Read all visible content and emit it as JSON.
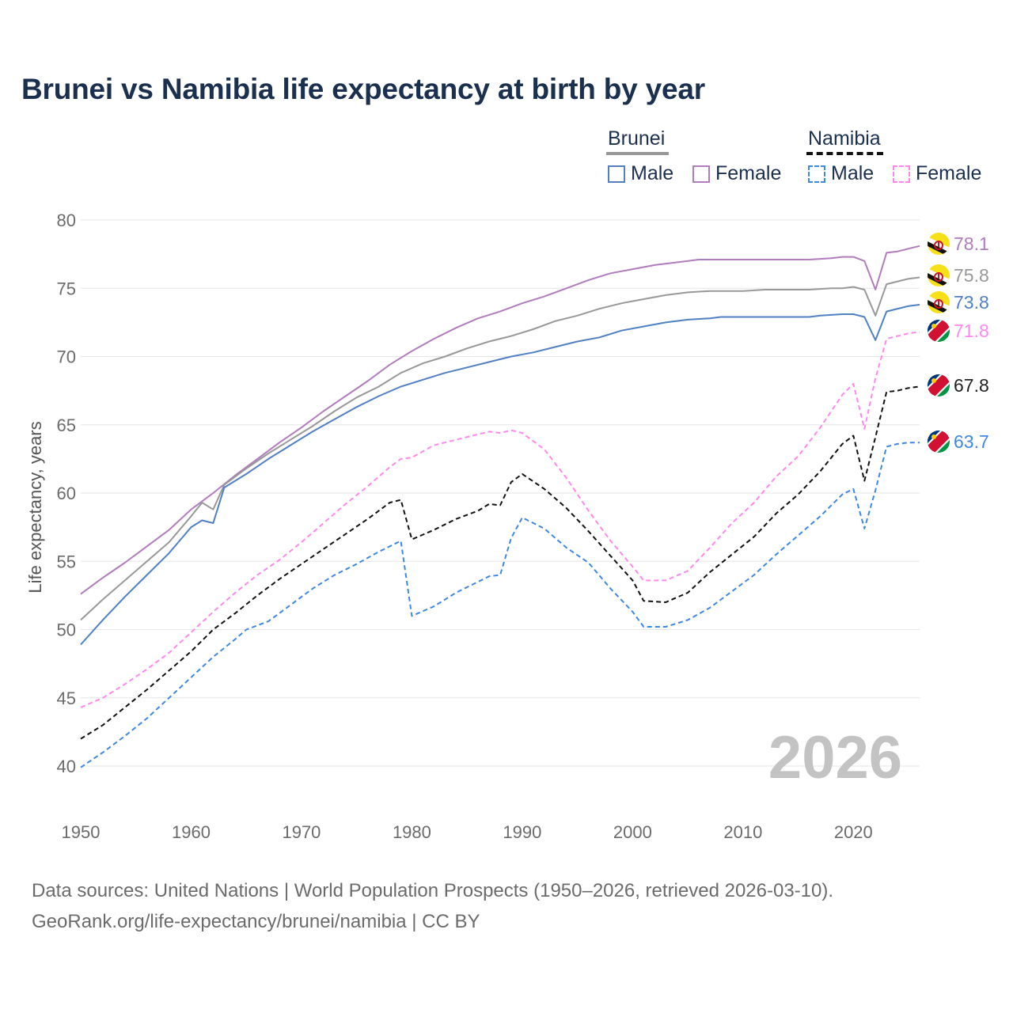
{
  "chart_data": {
    "type": "line",
    "title": "Brunei vs Namibia life expectancy at birth by year",
    "ylabel": "Life expectancy, years",
    "xlabel": "",
    "xlim": [
      1950,
      2026
    ],
    "ylim": [
      38,
      81
    ],
    "x_ticks": [
      "1950",
      "1960",
      "1970",
      "1980",
      "1990",
      "2000",
      "2010",
      "2020"
    ],
    "y_ticks": [
      "40",
      "45",
      "50",
      "55",
      "60",
      "65",
      "70",
      "75",
      "80"
    ],
    "year_watermark": "2026",
    "legend": {
      "brunei_label": "Brunei",
      "namibia_label": "Namibia",
      "male_label": "Male",
      "female_label": "Female"
    },
    "series": [
      {
        "name": "Brunei Female",
        "color": "#b07cbd",
        "dashed": false,
        "end_label": "78.1",
        "flag": "brunei",
        "points": [
          [
            1950,
            52.6
          ],
          [
            1952,
            53.8
          ],
          [
            1954,
            54.9
          ],
          [
            1956,
            56.1
          ],
          [
            1958,
            57.3
          ],
          [
            1960,
            58.8
          ],
          [
            1962,
            60.0
          ],
          [
            1964,
            61.3
          ],
          [
            1966,
            62.5
          ],
          [
            1968,
            63.7
          ],
          [
            1970,
            64.8
          ],
          [
            1972,
            66.0
          ],
          [
            1974,
            67.1
          ],
          [
            1976,
            68.2
          ],
          [
            1978,
            69.4
          ],
          [
            1980,
            70.4
          ],
          [
            1982,
            71.3
          ],
          [
            1984,
            72.1
          ],
          [
            1986,
            72.8
          ],
          [
            1988,
            73.3
          ],
          [
            1990,
            73.9
          ],
          [
            1992,
            74.4
          ],
          [
            1994,
            75.0
          ],
          [
            1996,
            75.6
          ],
          [
            1998,
            76.1
          ],
          [
            2000,
            76.4
          ],
          [
            2002,
            76.7
          ],
          [
            2004,
            76.9
          ],
          [
            2006,
            77.1
          ],
          [
            2008,
            77.1
          ],
          [
            2010,
            77.1
          ],
          [
            2012,
            77.1
          ],
          [
            2014,
            77.1
          ],
          [
            2016,
            77.1
          ],
          [
            2018,
            77.2
          ],
          [
            2019,
            77.3
          ],
          [
            2020,
            77.3
          ],
          [
            2021,
            77.0
          ],
          [
            2022,
            74.9
          ],
          [
            2023,
            77.6
          ],
          [
            2024,
            77.7
          ],
          [
            2025,
            77.9
          ],
          [
            2026,
            78.1
          ]
        ]
      },
      {
        "name": "Brunei (total)",
        "color": "#989898",
        "dashed": false,
        "end_label": "75.8",
        "flag": "brunei",
        "points": [
          [
            1950,
            50.7
          ],
          [
            1952,
            52.2
          ],
          [
            1954,
            53.6
          ],
          [
            1956,
            55.0
          ],
          [
            1958,
            56.4
          ],
          [
            1960,
            58.3
          ],
          [
            1961,
            59.3
          ],
          [
            1962,
            58.8
          ],
          [
            1963,
            60.6
          ],
          [
            1965,
            61.8
          ],
          [
            1967,
            62.9
          ],
          [
            1969,
            63.9
          ],
          [
            1971,
            64.9
          ],
          [
            1973,
            66.0
          ],
          [
            1975,
            67.0
          ],
          [
            1977,
            67.8
          ],
          [
            1979,
            68.8
          ],
          [
            1981,
            69.5
          ],
          [
            1983,
            70.0
          ],
          [
            1985,
            70.6
          ],
          [
            1987,
            71.1
          ],
          [
            1989,
            71.5
          ],
          [
            1991,
            72.0
          ],
          [
            1993,
            72.6
          ],
          [
            1995,
            73.0
          ],
          [
            1997,
            73.5
          ],
          [
            1999,
            73.9
          ],
          [
            2001,
            74.2
          ],
          [
            2003,
            74.5
          ],
          [
            2005,
            74.7
          ],
          [
            2007,
            74.8
          ],
          [
            2010,
            74.8
          ],
          [
            2012,
            74.9
          ],
          [
            2014,
            74.9
          ],
          [
            2016,
            74.9
          ],
          [
            2018,
            75.0
          ],
          [
            2019,
            75.0
          ],
          [
            2020,
            75.1
          ],
          [
            2021,
            74.9
          ],
          [
            2022,
            73.0
          ],
          [
            2023,
            75.3
          ],
          [
            2024,
            75.5
          ],
          [
            2025,
            75.7
          ],
          [
            2026,
            75.8
          ]
        ]
      },
      {
        "name": "Brunei Male",
        "color": "#4f80c4",
        "dashed": false,
        "end_label": "73.8",
        "flag": "brunei",
        "points": [
          [
            1950,
            48.9
          ],
          [
            1952,
            50.7
          ],
          [
            1954,
            52.4
          ],
          [
            1956,
            54.0
          ],
          [
            1958,
            55.6
          ],
          [
            1960,
            57.5
          ],
          [
            1961,
            58.0
          ],
          [
            1962,
            57.8
          ],
          [
            1963,
            60.4
          ],
          [
            1965,
            61.4
          ],
          [
            1967,
            62.5
          ],
          [
            1969,
            63.5
          ],
          [
            1971,
            64.5
          ],
          [
            1973,
            65.4
          ],
          [
            1975,
            66.3
          ],
          [
            1977,
            67.1
          ],
          [
            1979,
            67.8
          ],
          [
            1981,
            68.3
          ],
          [
            1983,
            68.8
          ],
          [
            1985,
            69.2
          ],
          [
            1987,
            69.6
          ],
          [
            1989,
            70.0
          ],
          [
            1991,
            70.3
          ],
          [
            1993,
            70.7
          ],
          [
            1995,
            71.1
          ],
          [
            1997,
            71.4
          ],
          [
            1999,
            71.9
          ],
          [
            2001,
            72.2
          ],
          [
            2003,
            72.5
          ],
          [
            2005,
            72.7
          ],
          [
            2007,
            72.8
          ],
          [
            2008,
            72.9
          ],
          [
            2010,
            72.9
          ],
          [
            2012,
            72.9
          ],
          [
            2014,
            72.9
          ],
          [
            2016,
            72.9
          ],
          [
            2017,
            73.0
          ],
          [
            2019,
            73.1
          ],
          [
            2020,
            73.1
          ],
          [
            2021,
            72.9
          ],
          [
            2022,
            71.2
          ],
          [
            2023,
            73.3
          ],
          [
            2024,
            73.5
          ],
          [
            2025,
            73.7
          ],
          [
            2026,
            73.8
          ]
        ]
      },
      {
        "name": "Namibia Female",
        "color": "#ff88ee",
        "dashed": true,
        "end_label": "71.8",
        "flag": "namibia",
        "points": [
          [
            1950,
            44.3
          ],
          [
            1952,
            45.0
          ],
          [
            1954,
            46.0
          ],
          [
            1956,
            47.1
          ],
          [
            1958,
            48.3
          ],
          [
            1960,
            49.8
          ],
          [
            1962,
            51.3
          ],
          [
            1964,
            52.7
          ],
          [
            1966,
            54.0
          ],
          [
            1968,
            55.1
          ],
          [
            1970,
            56.4
          ],
          [
            1972,
            57.8
          ],
          [
            1974,
            59.2
          ],
          [
            1976,
            60.5
          ],
          [
            1978,
            61.9
          ],
          [
            1979,
            62.5
          ],
          [
            1980,
            62.6
          ],
          [
            1982,
            63.5
          ],
          [
            1984,
            63.9
          ],
          [
            1986,
            64.3
          ],
          [
            1987,
            64.5
          ],
          [
            1988,
            64.4
          ],
          [
            1989,
            64.6
          ],
          [
            1990,
            64.4
          ],
          [
            1992,
            63.2
          ],
          [
            1994,
            61.1
          ],
          [
            1996,
            58.7
          ],
          [
            1998,
            56.5
          ],
          [
            2000,
            54.6
          ],
          [
            2001,
            53.6
          ],
          [
            2003,
            53.6
          ],
          [
            2005,
            54.3
          ],
          [
            2007,
            56.0
          ],
          [
            2009,
            57.8
          ],
          [
            2011,
            59.3
          ],
          [
            2013,
            61.2
          ],
          [
            2015,
            62.7
          ],
          [
            2017,
            64.8
          ],
          [
            2019,
            67.2
          ],
          [
            2020,
            68.0
          ],
          [
            2021,
            64.7
          ],
          [
            2022,
            68.4
          ],
          [
            2023,
            71.3
          ],
          [
            2024,
            71.5
          ],
          [
            2025,
            71.7
          ],
          [
            2026,
            71.8
          ]
        ]
      },
      {
        "name": "Namibia (total)",
        "color": "#111111",
        "dashed": true,
        "end_label": "67.8",
        "flag": "namibia",
        "points": [
          [
            1950,
            42.0
          ],
          [
            1952,
            43.0
          ],
          [
            1954,
            44.3
          ],
          [
            1956,
            45.6
          ],
          [
            1958,
            47.0
          ],
          [
            1960,
            48.4
          ],
          [
            1962,
            50.0
          ],
          [
            1964,
            51.2
          ],
          [
            1966,
            52.5
          ],
          [
            1968,
            53.7
          ],
          [
            1970,
            54.8
          ],
          [
            1972,
            55.9
          ],
          [
            1974,
            57.0
          ],
          [
            1976,
            58.1
          ],
          [
            1978,
            59.3
          ],
          [
            1979,
            59.5
          ],
          [
            1980,
            56.6
          ],
          [
            1982,
            57.3
          ],
          [
            1984,
            58.1
          ],
          [
            1986,
            58.7
          ],
          [
            1987,
            59.2
          ],
          [
            1988,
            59.1
          ],
          [
            1989,
            60.8
          ],
          [
            1990,
            61.4
          ],
          [
            1992,
            60.3
          ],
          [
            1994,
            58.9
          ],
          [
            1996,
            57.2
          ],
          [
            1998,
            55.4
          ],
          [
            2000,
            53.6
          ],
          [
            2001,
            52.1
          ],
          [
            2003,
            52.0
          ],
          [
            2005,
            52.7
          ],
          [
            2007,
            54.2
          ],
          [
            2009,
            55.5
          ],
          [
            2011,
            56.8
          ],
          [
            2013,
            58.5
          ],
          [
            2015,
            59.9
          ],
          [
            2017,
            61.6
          ],
          [
            2019,
            63.6
          ],
          [
            2020,
            64.2
          ],
          [
            2021,
            60.9
          ],
          [
            2022,
            64.1
          ],
          [
            2023,
            67.4
          ],
          [
            2024,
            67.5
          ],
          [
            2025,
            67.7
          ],
          [
            2026,
            67.8
          ]
        ]
      },
      {
        "name": "Namibia Male",
        "color": "#3f87e5",
        "dashed": true,
        "end_label": "63.7",
        "flag": "namibia",
        "points": [
          [
            1950,
            39.9
          ],
          [
            1952,
            41.0
          ],
          [
            1954,
            42.2
          ],
          [
            1956,
            43.5
          ],
          [
            1958,
            45.0
          ],
          [
            1960,
            46.5
          ],
          [
            1962,
            48.0
          ],
          [
            1964,
            49.3
          ],
          [
            1965,
            50.0
          ],
          [
            1967,
            50.6
          ],
          [
            1969,
            51.8
          ],
          [
            1971,
            53.0
          ],
          [
            1973,
            54.0
          ],
          [
            1975,
            54.8
          ],
          [
            1977,
            55.7
          ],
          [
            1979,
            56.5
          ],
          [
            1980,
            51.0
          ],
          [
            1982,
            51.7
          ],
          [
            1984,
            52.7
          ],
          [
            1986,
            53.5
          ],
          [
            1987,
            53.9
          ],
          [
            1988,
            54.0
          ],
          [
            1989,
            56.7
          ],
          [
            1990,
            58.2
          ],
          [
            1992,
            57.4
          ],
          [
            1994,
            56.0
          ],
          [
            1996,
            54.9
          ],
          [
            1998,
            53.0
          ],
          [
            2000,
            51.3
          ],
          [
            2001,
            50.2
          ],
          [
            2003,
            50.2
          ],
          [
            2005,
            50.7
          ],
          [
            2007,
            51.6
          ],
          [
            2009,
            52.8
          ],
          [
            2011,
            54.0
          ],
          [
            2013,
            55.5
          ],
          [
            2015,
            56.9
          ],
          [
            2017,
            58.3
          ],
          [
            2019,
            59.9
          ],
          [
            2020,
            60.3
          ],
          [
            2021,
            57.4
          ],
          [
            2022,
            60.2
          ],
          [
            2023,
            63.4
          ],
          [
            2024,
            63.6
          ],
          [
            2025,
            63.7
          ],
          [
            2026,
            63.7
          ]
        ]
      }
    ]
  },
  "source_line1": "Data sources: United Nations | World Population Prospects (1950–2026, retrieved 2026-03-10).",
  "source_line2": "GeoRank.org/life-expectancy/brunei/namibia | CC BY"
}
